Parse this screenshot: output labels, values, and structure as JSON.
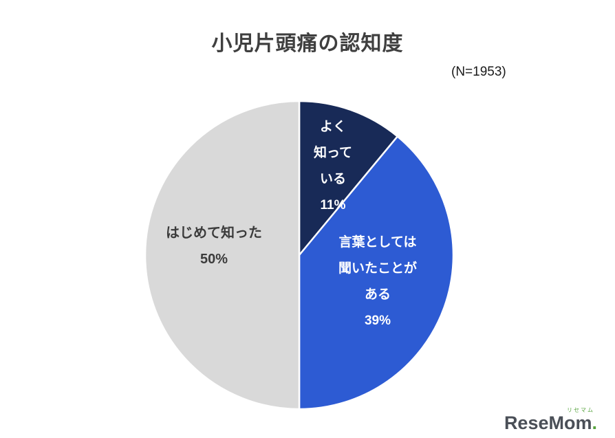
{
  "title": "小児片頭痛の認知度",
  "sample_size_label": "(N=1953)",
  "chart_data": {
    "type": "pie",
    "title": "小児片頭痛の認知度",
    "n": 1953,
    "n_label": "(N=1953)",
    "start_angle_deg": 0,
    "clockwise": true,
    "legend_position": "inside",
    "slices": [
      {
        "label": "よく知っている",
        "value": 11,
        "unit": "%",
        "color": "#182a57",
        "text_color": "#ffffff",
        "label_lines": [
          "よく",
          "知って",
          "いる",
          "11%"
        ]
      },
      {
        "label": "言葉としては聞いたことがある",
        "value": 39,
        "unit": "%",
        "color": "#2d5bd3",
        "text_color": "#ffffff",
        "label_lines": [
          "言葉としては",
          "聞いたことが",
          "ある",
          "39%"
        ]
      },
      {
        "label": "はじめて知った",
        "value": 50,
        "unit": "%",
        "color": "#d9d9d9",
        "text_color": "#3b3b3b",
        "label_lines": [
          "はじめて知った",
          "50%"
        ]
      }
    ]
  },
  "logo": {
    "ruby": "リセマム",
    "word": "ReseMom",
    "dot": "."
  }
}
